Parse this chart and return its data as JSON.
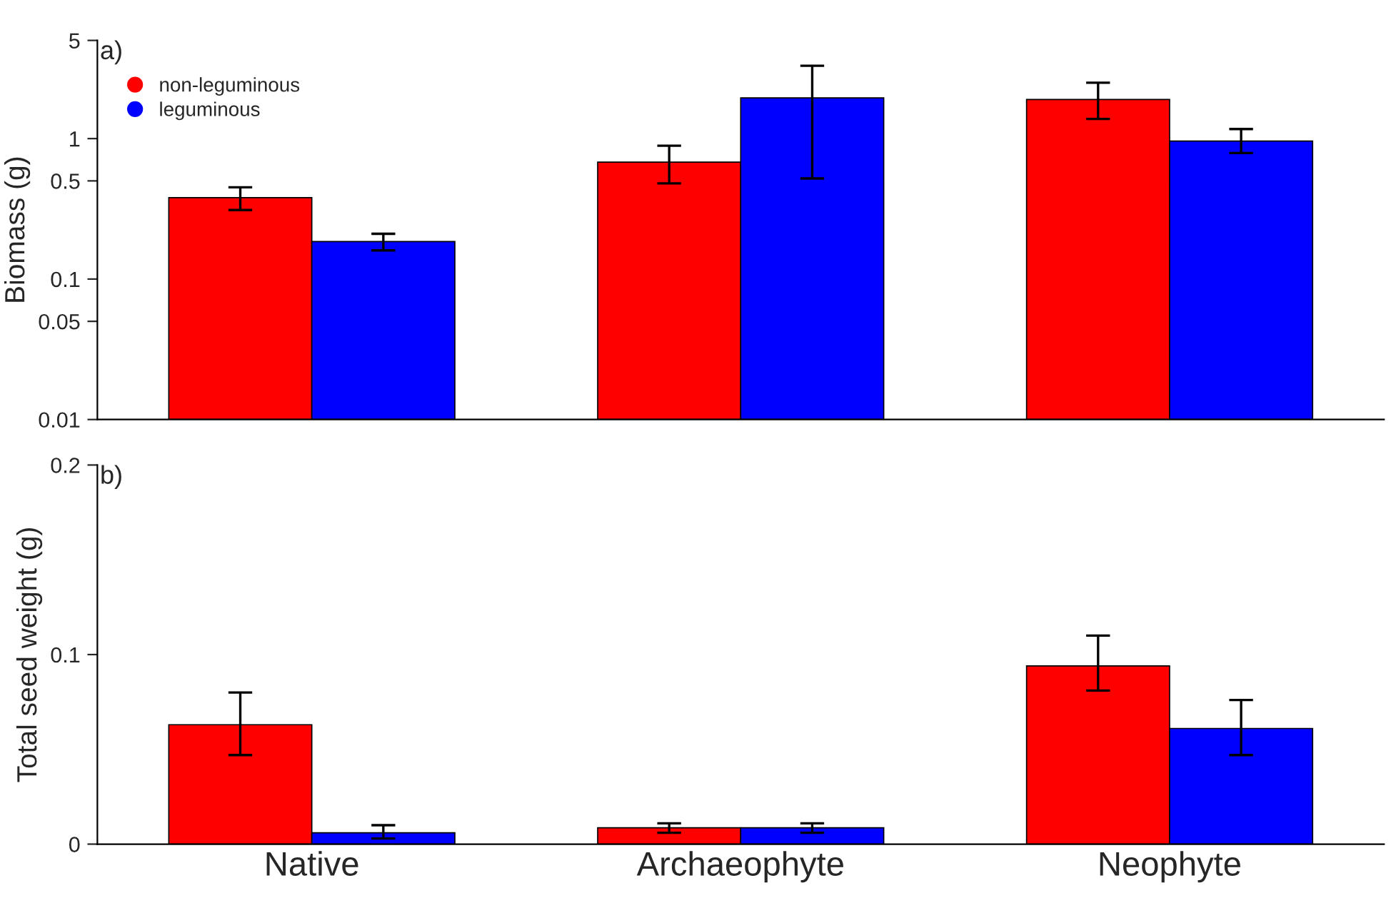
{
  "chart_data": [
    {
      "type": "bar",
      "ylabel": "Biomass (g)",
      "categories": [
        null,
        null,
        null
      ],
      "log": "y",
      "ylim": [
        0.01,
        5
      ],
      "yticks": [
        0.01,
        0.05,
        0.1,
        0.5,
        1,
        5
      ],
      "tick_labels": "y",
      "legend": "top left",
      "grid": false,
      "annotations": [
        "a)"
      ],
      "series": [
        {
          "name": "non-leguminous",
          "color": "#ff0000",
          "values": [
            0.38,
            0.68,
            1.9
          ],
          "errors": [
            [
              0.31,
              0.45
            ],
            [
              0.48,
              0.89
            ],
            [
              1.38,
              2.5
            ]
          ]
        },
        {
          "name": "leguminous",
          "color": "#0000ff",
          "values": [
            0.185,
            1.95,
            0.96
          ],
          "errors": [
            [
              0.16,
              0.21
            ],
            [
              0.52,
              3.3
            ],
            [
              0.79,
              1.17
            ]
          ]
        }
      ]
    },
    {
      "type": "bar",
      "ylabel": "Total seed weight (g)",
      "categories": [
        "Native",
        "Archaeophyte",
        "Neophyte"
      ],
      "ylim": [
        0,
        0.2
      ],
      "yticks": [
        0,
        0.1,
        0.2
      ],
      "grid": false,
      "annotations": [
        "b)"
      ],
      "series": [
        {
          "color": "#ff0000",
          "values": [
            0.063,
            0.0086,
            0.094
          ],
          "errors": [
            [
              0.047,
              0.08
            ],
            [
              0.006,
              0.011
            ],
            [
              0.081,
              0.11
            ]
          ]
        },
        {
          "color": "#0000ff",
          "values": [
            0.006,
            0.0086,
            0.061
          ],
          "errors": [
            [
              0.003,
              0.01
            ],
            [
              0.006,
              0.011
            ],
            [
              0.047,
              0.076
            ]
          ]
        }
      ]
    }
  ]
}
